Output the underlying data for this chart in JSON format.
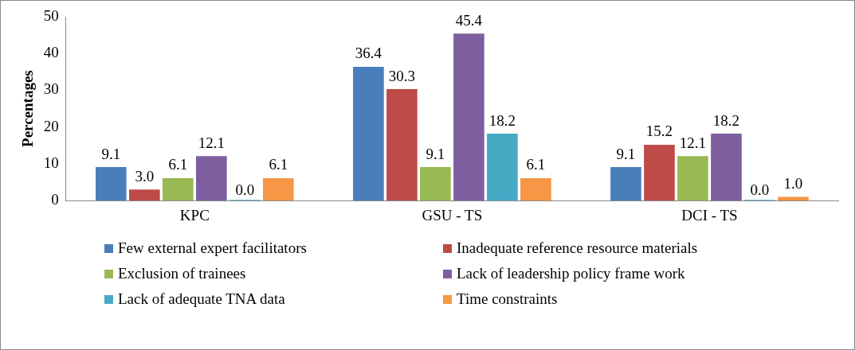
{
  "chart_data": {
    "type": "bar",
    "ylabel": "Percentages",
    "categories": [
      "KPC",
      "GSU - TS",
      "DCI - TS"
    ],
    "series": [
      {
        "name": "Few external expert facilitators",
        "color": "#4a7ebb",
        "values": [
          9.1,
          36.4,
          9.1
        ],
        "value_labels": [
          "9.1",
          "36.4",
          "9.1"
        ]
      },
      {
        "name": "Inadequate reference resource materials",
        "color": "#be4b48",
        "values": [
          3.0,
          30.3,
          15.2
        ],
        "value_labels": [
          "3.0",
          "30.3",
          "15.2"
        ]
      },
      {
        "name": "Exclusion of trainees",
        "color": "#98b954",
        "values": [
          6.1,
          9.1,
          12.1
        ],
        "value_labels": [
          "6.1",
          "9.1",
          "12.1"
        ]
      },
      {
        "name": "Lack of leadership policy frame work",
        "color": "#7d5fa0",
        "values": [
          12.1,
          45.4,
          18.2
        ],
        "value_labels": [
          "12.1",
          "45.4",
          "18.2"
        ]
      },
      {
        "name": "Lack of adequate TNA data",
        "color": "#46aac5",
        "values": [
          0.0,
          18.2,
          0.0
        ],
        "value_labels": [
          "0.0",
          "18.2",
          "0.0"
        ]
      },
      {
        "name": "Time constraints",
        "color": "#f79646",
        "values": [
          6.1,
          6.1,
          1.0
        ],
        "value_labels": [
          "6.1",
          "6.1",
          "1.0"
        ]
      }
    ],
    "ylim": [
      0,
      50
    ],
    "yticks": [
      0,
      10,
      20,
      30,
      40,
      50
    ],
    "grid": false,
    "legend": "bottom"
  }
}
